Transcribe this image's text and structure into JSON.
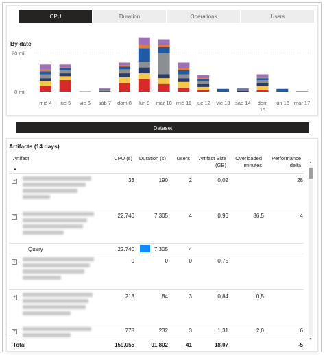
{
  "tabs": [
    {
      "label": "CPU",
      "active": true
    },
    {
      "label": "Duration",
      "active": false
    },
    {
      "label": "Operations",
      "active": false
    },
    {
      "label": "Users",
      "active": false
    }
  ],
  "chart": {
    "title": "By date"
  },
  "chart_data": {
    "type": "bar",
    "stacked": true,
    "title": "By date",
    "ytick_labels": [
      "0 mil",
      "20 mil"
    ],
    "ylim": [
      0,
      30
    ],
    "grid": true,
    "categories": [
      "mié 4",
      "jue 5",
      "vie 6",
      "sáb 7",
      "dom 8",
      "lun 9",
      "mar 10",
      "mié 11",
      "jue 12",
      "vie 13",
      "sáb 14",
      "dom 15",
      "lun 16",
      "mar 17"
    ],
    "series": [
      {
        "color": "#d62b2b",
        "values": [
          3,
          6,
          0,
          0,
          4.5,
          6.5,
          4,
          2,
          1,
          0,
          0,
          1,
          0,
          0
        ]
      },
      {
        "color": "#f2c94c",
        "values": [
          2.5,
          2,
          0,
          0,
          3,
          3,
          3,
          3,
          1.5,
          0,
          0,
          2,
          0,
          0
        ]
      },
      {
        "color": "#2b3a67",
        "values": [
          1.5,
          1.5,
          0,
          0.3,
          2,
          3,
          2,
          2,
          1.5,
          0,
          0.5,
          1.5,
          0,
          0
        ]
      },
      {
        "color": "#8b8f94",
        "values": [
          2,
          1.5,
          0.2,
          0.5,
          2,
          3,
          11,
          2,
          1.5,
          0,
          0.5,
          1.5,
          0,
          0
        ]
      },
      {
        "color": "#1f5aa6",
        "values": [
          1.5,
          1,
          0,
          0.5,
          1.5,
          7,
          3,
          2,
          1,
          1.5,
          0.3,
          1,
          1.5,
          0.2
        ]
      },
      {
        "color": "#e07b39",
        "values": [
          1,
          0.5,
          0,
          0.2,
          0.5,
          1.5,
          1,
          1,
          0.5,
          0,
          0,
          0.5,
          0,
          0
        ]
      },
      {
        "color": "#9c6fb6",
        "values": [
          2.5,
          1.5,
          0,
          0.5,
          1.5,
          4,
          3,
          3,
          1.5,
          0,
          0.5,
          1.5,
          0,
          0
        ]
      }
    ]
  },
  "dataset_label": "Dataset",
  "table": {
    "title": "Artifacts (14 days)",
    "headers": {
      "artifact": "Artifact",
      "cpu": "CPU (s)",
      "duration": "Duration (s)",
      "users": "Users",
      "size_1": "Artifact Size",
      "size_2": "(GB)",
      "overloaded_1": "Overloaded",
      "overloaded_2": "minutes",
      "perf_1": "Performance",
      "perf_2": "delta"
    },
    "rows": [
      {
        "cpu": "33",
        "duration": "190",
        "users": "2",
        "size": "0,02",
        "overloaded": "",
        "perf": "28"
      },
      {
        "cpu": "22.740",
        "duration": "7.305",
        "users": "4",
        "size": "0,96",
        "overloaded": "86,5",
        "perf": "4"
      },
      {
        "cpu": "0",
        "duration": "0",
        "users": "0",
        "size": "0,75",
        "overloaded": "",
        "perf": ""
      },
      {
        "cpu": "213",
        "duration": "84",
        "users": "3",
        "size": "0,84",
        "overloaded": "0,5",
        "perf": ""
      },
      {
        "cpu": "778",
        "duration": "232",
        "users": "3",
        "size": "1,31",
        "overloaded": "2,0",
        "perf": "6"
      }
    ],
    "query": {
      "label": "Query",
      "cpu": "22.740",
      "duration": "7.305",
      "users": "4",
      "duration_fraction": 1.0
    },
    "total": {
      "label": "Total",
      "cpu": "159.055",
      "duration": "91.802",
      "users": "41",
      "size": "18,07",
      "overloaded": "",
      "perf": "-5"
    },
    "expand_collapsed": "+",
    "expand_open": "−"
  }
}
